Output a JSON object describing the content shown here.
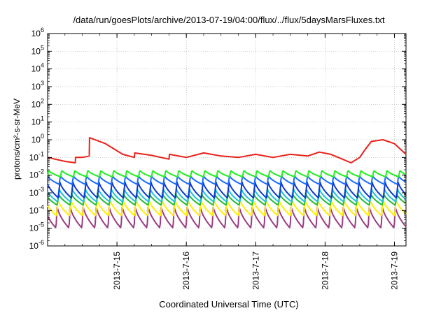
{
  "chart_data": {
    "type": "line",
    "title": "/data/run/goesPlots/archive/2013-07-19/04:00/flux/../flux/5daysMarsFluxes.txt",
    "xlabel": "Coordinated Universal Time (UTC)",
    "ylabel": "protons/cm²-s-sr-MeV",
    "yscale": "log",
    "ylim": [
      1e-06,
      1000000.0
    ],
    "y_ticks": [
      {
        "base": "10",
        "exp": "6"
      },
      {
        "base": "10",
        "exp": "5"
      },
      {
        "base": "10",
        "exp": "4"
      },
      {
        "base": "10",
        "exp": "3"
      },
      {
        "base": "10",
        "exp": "2"
      },
      {
        "base": "10",
        "exp": "1"
      },
      {
        "base": "10",
        "exp": "0"
      },
      {
        "base": "10",
        "exp": "-1"
      },
      {
        "base": "10",
        "exp": "-2"
      },
      {
        "base": "10",
        "exp": "-3"
      },
      {
        "base": "10",
        "exp": "-4"
      },
      {
        "base": "10",
        "exp": "-5"
      },
      {
        "base": "10",
        "exp": "-6"
      }
    ],
    "xlim": [
      "2013-07-14T00:00",
      "2013-07-19T04:00"
    ],
    "x_ticks": [
      "2013-7-15",
      "2013-7-16",
      "2013-7-17",
      "2013-7-18",
      "2013-7-19"
    ],
    "grid": true,
    "legend": "none",
    "series": [
      {
        "color": "#e8221a",
        "values": [
          [
            "2013-07-14T00:00",
            0.1
          ],
          [
            "2013-07-14T06:00",
            0.06
          ],
          [
            "2013-07-14T09:36",
            0.05
          ],
          [
            "2013-07-14T09:40",
            0.1
          ],
          [
            "2013-07-14T12:00",
            0.1
          ],
          [
            "2013-07-14T14:24",
            0.12
          ],
          [
            "2013-07-14T14:30",
            1.3
          ],
          [
            "2013-07-14T20:00",
            0.6
          ],
          [
            "2013-07-15T02:00",
            0.15
          ],
          [
            "2013-07-15T06:00",
            0.1
          ],
          [
            "2013-07-15T06:10",
            0.18
          ],
          [
            "2013-07-15T12:00",
            0.13
          ],
          [
            "2013-07-15T18:00",
            0.08
          ],
          [
            "2013-07-15T18:10",
            0.15
          ],
          [
            "2013-07-16T00:00",
            0.1
          ],
          [
            "2013-07-16T06:00",
            0.18
          ],
          [
            "2013-07-16T12:00",
            0.12
          ],
          [
            "2013-07-16T18:00",
            0.1
          ],
          [
            "2013-07-17T00:00",
            0.15
          ],
          [
            "2013-07-17T06:00",
            0.1
          ],
          [
            "2013-07-17T12:00",
            0.15
          ],
          [
            "2013-07-17T18:00",
            0.12
          ],
          [
            "2013-07-17T22:00",
            0.2
          ],
          [
            "2013-07-18T02:00",
            0.15
          ],
          [
            "2013-07-18T06:00",
            0.08
          ],
          [
            "2013-07-18T09:00",
            0.05
          ],
          [
            "2013-07-18T12:00",
            0.1
          ],
          [
            "2013-07-18T14:00",
            0.3
          ],
          [
            "2013-07-18T16:00",
            0.8
          ],
          [
            "2013-07-18T20:00",
            1.0
          ],
          [
            "2013-07-19T00:00",
            0.6
          ],
          [
            "2013-07-19T04:00",
            0.15
          ]
        ]
      },
      {
        "color": "#22ee22",
        "note": "sawtooth, peaks ~2e-2, troughs ~8e-3, period ~4.5h"
      },
      {
        "color": "#1a6bff",
        "note": "sawtooth, peaks ~1e-2, troughs ~3e-3"
      },
      {
        "color": "#0e3ad0",
        "note": "sawtooth, peaks ~5e-3, troughs ~5e-4"
      },
      {
        "color": "#19c5d8",
        "note": "sawtooth, peaks ~2e-3, troughs ~3e-4"
      },
      {
        "color": "#22bb33",
        "note": "sawtooth, peaks ~1e-3, troughs ~2e-4"
      },
      {
        "color": "#ffee00",
        "note": "sawtooth, peaks ~5e-4, troughs ~5e-5"
      },
      {
        "color": "#9a3c82",
        "note": "sawtooth, peaks ~2e-4, troughs ~1e-5"
      }
    ]
  }
}
